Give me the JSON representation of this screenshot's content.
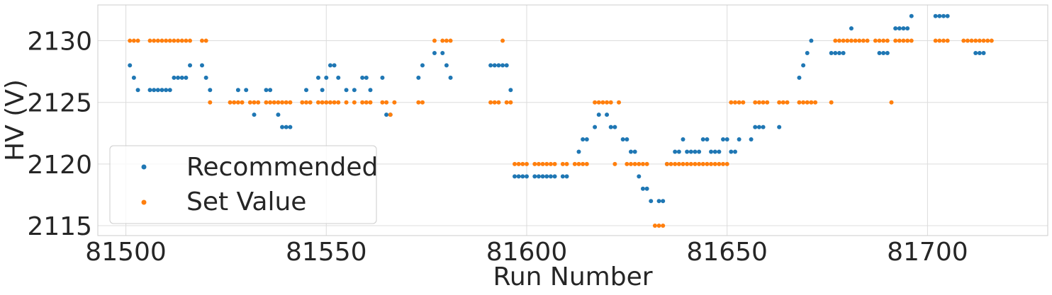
{
  "chart_data": {
    "type": "scatter",
    "title": "",
    "xlabel": "Run Number",
    "ylabel": "HV (V)",
    "xlim": [
      81493,
      81730
    ],
    "ylim": [
      2114.2,
      2132.9
    ],
    "xticks": [
      81500,
      81550,
      81600,
      81650,
      81700
    ],
    "yticks": [
      2115,
      2120,
      2125,
      2130
    ],
    "grid": true,
    "legend_position": "lower-left",
    "series": [
      {
        "name": "Recommended",
        "color": "#1f77b4",
        "points": [
          [
            81501,
            2128
          ],
          [
            81502,
            2127
          ],
          [
            81503,
            2126
          ],
          [
            81506,
            2126
          ],
          [
            81507,
            2126
          ],
          [
            81508,
            2126
          ],
          [
            81509,
            2126
          ],
          [
            81510,
            2126
          ],
          [
            81511,
            2126
          ],
          [
            81512,
            2127
          ],
          [
            81513,
            2127
          ],
          [
            81514,
            2127
          ],
          [
            81515,
            2127
          ],
          [
            81516,
            2128
          ],
          [
            81519,
            2128
          ],
          [
            81520,
            2127
          ],
          [
            81521,
            2126
          ],
          [
            81528,
            2126
          ],
          [
            81530,
            2126
          ],
          [
            81532,
            2124
          ],
          [
            81535,
            2126
          ],
          [
            81536,
            2126
          ],
          [
            81538,
            2124
          ],
          [
            81539,
            2123
          ],
          [
            81540,
            2123
          ],
          [
            81541,
            2123
          ],
          [
            81545,
            2126
          ],
          [
            81548,
            2127
          ],
          [
            81549,
            2126
          ],
          [
            81550,
            2127
          ],
          [
            81551,
            2128
          ],
          [
            81552,
            2128
          ],
          [
            81553,
            2127
          ],
          [
            81555,
            2126
          ],
          [
            81557,
            2126
          ],
          [
            81559,
            2127
          ],
          [
            81560,
            2127
          ],
          [
            81561,
            2126
          ],
          [
            81564,
            2127
          ],
          [
            81565,
            2124
          ],
          [
            81566,
            2124
          ],
          [
            81573,
            2127
          ],
          [
            81574,
            2128
          ],
          [
            81577,
            2129
          ],
          [
            81579,
            2129
          ],
          [
            81580,
            2128
          ],
          [
            81581,
            2127
          ],
          [
            81591,
            2128
          ],
          [
            81592,
            2128
          ],
          [
            81593,
            2128
          ],
          [
            81594,
            2128
          ],
          [
            81595,
            2128
          ],
          [
            81596,
            2126
          ],
          [
            81597,
            2119
          ],
          [
            81598,
            2119
          ],
          [
            81599,
            2119
          ],
          [
            81600,
            2119
          ],
          [
            81602,
            2119
          ],
          [
            81603,
            2119
          ],
          [
            81604,
            2119
          ],
          [
            81605,
            2119
          ],
          [
            81606,
            2119
          ],
          [
            81607,
            2119
          ],
          [
            81609,
            2119
          ],
          [
            81610,
            2119
          ],
          [
            81613,
            2121
          ],
          [
            81614,
            2122
          ],
          [
            81615,
            2122
          ],
          [
            81617,
            2123
          ],
          [
            81618,
            2124
          ],
          [
            81620,
            2124
          ],
          [
            81621,
            2123
          ],
          [
            81622,
            2123
          ],
          [
            81624,
            2122
          ],
          [
            81625,
            2122
          ],
          [
            81626,
            2121
          ],
          [
            81627,
            2121
          ],
          [
            81628,
            2119
          ],
          [
            81629,
            2118
          ],
          [
            81630,
            2118
          ],
          [
            81631,
            2117
          ],
          [
            81633,
            2117
          ],
          [
            81634,
            2117
          ],
          [
            81635,
            2120
          ],
          [
            81637,
            2121
          ],
          [
            81638,
            2121
          ],
          [
            81639,
            2122
          ],
          [
            81640,
            2121
          ],
          [
            81641,
            2121
          ],
          [
            81642,
            2121
          ],
          [
            81643,
            2121
          ],
          [
            81644,
            2122
          ],
          [
            81645,
            2122
          ],
          [
            81646,
            2121
          ],
          [
            81647,
            2121
          ],
          [
            81648,
            2121
          ],
          [
            81649,
            2122
          ],
          [
            81650,
            2122
          ],
          [
            81651,
            2121
          ],
          [
            81652,
            2121
          ],
          [
            81653,
            2122
          ],
          [
            81656,
            2122
          ],
          [
            81657,
            2123
          ],
          [
            81658,
            2123
          ],
          [
            81659,
            2123
          ],
          [
            81663,
            2123
          ],
          [
            81668,
            2127
          ],
          [
            81669,
            2128
          ],
          [
            81670,
            2129
          ],
          [
            81671,
            2130
          ],
          [
            81676,
            2129
          ],
          [
            81677,
            2129
          ],
          [
            81678,
            2129
          ],
          [
            81679,
            2129
          ],
          [
            81681,
            2131
          ],
          [
            81688,
            2129
          ],
          [
            81689,
            2129
          ],
          [
            81690,
            2129
          ],
          [
            81692,
            2131
          ],
          [
            81693,
            2131
          ],
          [
            81694,
            2131
          ],
          [
            81695,
            2131
          ],
          [
            81696,
            2132
          ],
          [
            81702,
            2132
          ],
          [
            81703,
            2132
          ],
          [
            81704,
            2132
          ],
          [
            81705,
            2132
          ],
          [
            81712,
            2129
          ],
          [
            81713,
            2129
          ],
          [
            81714,
            2129
          ]
        ]
      },
      {
        "name": "Set Value",
        "color": "#ff7f0e",
        "points": [
          [
            81501,
            2130
          ],
          [
            81502,
            2130
          ],
          [
            81503,
            2130
          ],
          [
            81506,
            2130
          ],
          [
            81507,
            2130
          ],
          [
            81508,
            2130
          ],
          [
            81509,
            2130
          ],
          [
            81510,
            2130
          ],
          [
            81511,
            2130
          ],
          [
            81512,
            2130
          ],
          [
            81513,
            2130
          ],
          [
            81514,
            2130
          ],
          [
            81515,
            2130
          ],
          [
            81516,
            2130
          ],
          [
            81519,
            2130
          ],
          [
            81520,
            2130
          ],
          [
            81521,
            2125
          ],
          [
            81526,
            2125
          ],
          [
            81527,
            2125
          ],
          [
            81528,
            2125
          ],
          [
            81529,
            2125
          ],
          [
            81531,
            2125
          ],
          [
            81532,
            2125
          ],
          [
            81533,
            2125
          ],
          [
            81535,
            2125
          ],
          [
            81536,
            2125
          ],
          [
            81537,
            2125
          ],
          [
            81538,
            2125
          ],
          [
            81539,
            2125
          ],
          [
            81540,
            2125
          ],
          [
            81541,
            2125
          ],
          [
            81544,
            2125
          ],
          [
            81545,
            2125
          ],
          [
            81546,
            2125
          ],
          [
            81548,
            2125
          ],
          [
            81549,
            2125
          ],
          [
            81550,
            2125
          ],
          [
            81551,
            2125
          ],
          [
            81552,
            2125
          ],
          [
            81553,
            2125
          ],
          [
            81555,
            2125
          ],
          [
            81557,
            2125
          ],
          [
            81559,
            2125
          ],
          [
            81560,
            2125
          ],
          [
            81561,
            2125
          ],
          [
            81564,
            2125
          ],
          [
            81565,
            2125
          ],
          [
            81566,
            2124
          ],
          [
            81567,
            2125
          ],
          [
            81573,
            2125
          ],
          [
            81574,
            2125
          ],
          [
            81577,
            2130
          ],
          [
            81579,
            2130
          ],
          [
            81580,
            2130
          ],
          [
            81581,
            2130
          ],
          [
            81591,
            2125
          ],
          [
            81592,
            2125
          ],
          [
            81593,
            2125
          ],
          [
            81594,
            2130
          ],
          [
            81595,
            2125
          ],
          [
            81596,
            2125
          ],
          [
            81597,
            2120
          ],
          [
            81598,
            2120
          ],
          [
            81599,
            2120
          ],
          [
            81600,
            2120
          ],
          [
            81602,
            2120
          ],
          [
            81603,
            2120
          ],
          [
            81604,
            2120
          ],
          [
            81605,
            2120
          ],
          [
            81606,
            2120
          ],
          [
            81607,
            2120
          ],
          [
            81609,
            2120
          ],
          [
            81610,
            2120
          ],
          [
            81612,
            2120
          ],
          [
            81613,
            2120
          ],
          [
            81614,
            2120
          ],
          [
            81615,
            2120
          ],
          [
            81617,
            2125
          ],
          [
            81618,
            2125
          ],
          [
            81619,
            2125
          ],
          [
            81620,
            2125
          ],
          [
            81621,
            2125
          ],
          [
            81622,
            2120
          ],
          [
            81623,
            2125
          ],
          [
            81625,
            2120
          ],
          [
            81626,
            2120
          ],
          [
            81627,
            2120
          ],
          [
            81628,
            2120
          ],
          [
            81629,
            2120
          ],
          [
            81630,
            2120
          ],
          [
            81632,
            2115
          ],
          [
            81633,
            2115
          ],
          [
            81634,
            2115
          ],
          [
            81635,
            2120
          ],
          [
            81636,
            2120
          ],
          [
            81637,
            2120
          ],
          [
            81638,
            2120
          ],
          [
            81639,
            2120
          ],
          [
            81640,
            2120
          ],
          [
            81641,
            2120
          ],
          [
            81642,
            2120
          ],
          [
            81643,
            2120
          ],
          [
            81644,
            2120
          ],
          [
            81645,
            2120
          ],
          [
            81646,
            2120
          ],
          [
            81647,
            2120
          ],
          [
            81648,
            2120
          ],
          [
            81649,
            2120
          ],
          [
            81650,
            2120
          ],
          [
            81651,
            2125
          ],
          [
            81652,
            2125
          ],
          [
            81653,
            2125
          ],
          [
            81654,
            2125
          ],
          [
            81657,
            2125
          ],
          [
            81658,
            2125
          ],
          [
            81659,
            2125
          ],
          [
            81660,
            2125
          ],
          [
            81663,
            2125
          ],
          [
            81664,
            2125
          ],
          [
            81665,
            2125
          ],
          [
            81668,
            2125
          ],
          [
            81669,
            2125
          ],
          [
            81670,
            2125
          ],
          [
            81671,
            2125
          ],
          [
            81672,
            2125
          ],
          [
            81676,
            2125
          ],
          [
            81677,
            2130
          ],
          [
            81678,
            2130
          ],
          [
            81679,
            2130
          ],
          [
            81680,
            2130
          ],
          [
            81681,
            2130
          ],
          [
            81682,
            2130
          ],
          [
            81683,
            2130
          ],
          [
            81684,
            2130
          ],
          [
            81685,
            2130
          ],
          [
            81687,
            2130
          ],
          [
            81688,
            2130
          ],
          [
            81689,
            2130
          ],
          [
            81690,
            2130
          ],
          [
            81691,
            2125
          ],
          [
            81692,
            2130
          ],
          [
            81693,
            2130
          ],
          [
            81694,
            2130
          ],
          [
            81695,
            2130
          ],
          [
            81696,
            2130
          ],
          [
            81702,
            2130
          ],
          [
            81703,
            2130
          ],
          [
            81704,
            2130
          ],
          [
            81705,
            2130
          ],
          [
            81709,
            2130
          ],
          [
            81710,
            2130
          ],
          [
            81711,
            2130
          ],
          [
            81712,
            2130
          ],
          [
            81713,
            2130
          ],
          [
            81714,
            2130
          ],
          [
            81715,
            2130
          ],
          [
            81716,
            2130
          ]
        ]
      }
    ]
  }
}
